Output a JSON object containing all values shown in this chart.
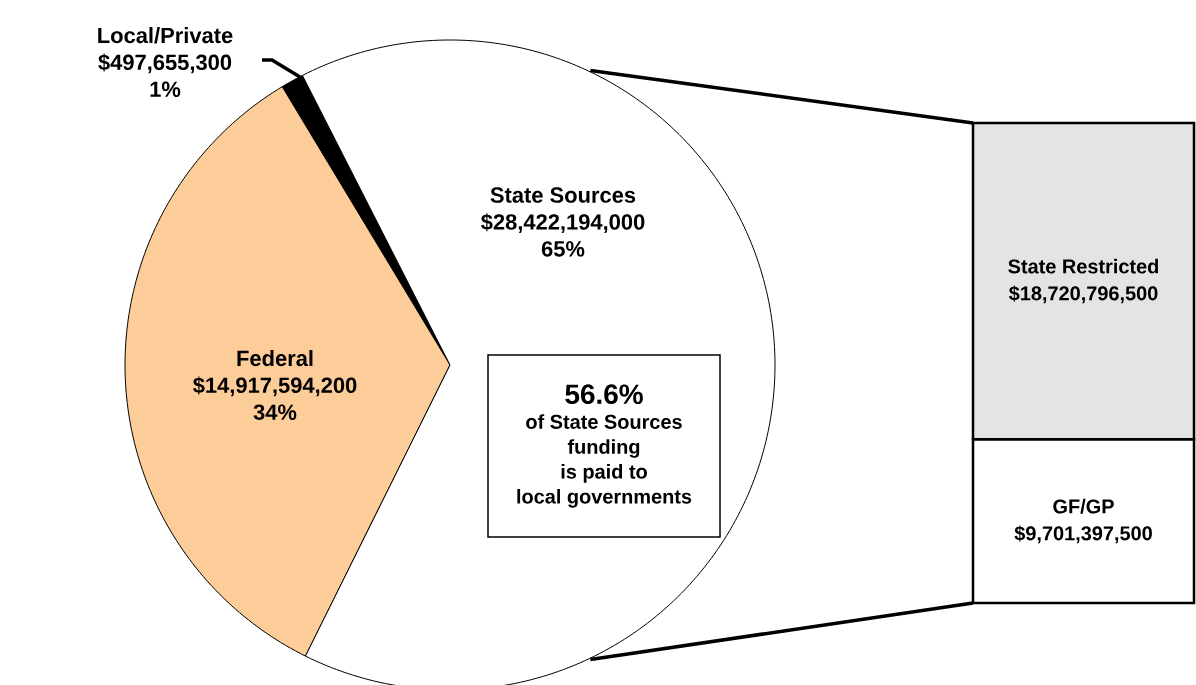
{
  "chart_data": [
    {
      "type": "pie",
      "categories": [
        "Local/Private",
        "Federal",
        "State Sources"
      ],
      "values": [
        497655300,
        14917594200,
        28422194000
      ],
      "colors": [
        "#000000",
        "#fccc99",
        "#ffffff"
      ],
      "value_labels": [
        "$497,655,300",
        "$14,917,594,200",
        "$28,422,194,000"
      ],
      "annotations": [
        "1%",
        "34%",
        "65%",
        "56.6%",
        "of State Sources",
        "funding",
        "is paid to",
        "local governments"
      ]
    },
    {
      "type": "bar",
      "stacked": true,
      "categories": [
        null
      ],
      "series": [
        {
          "name": "GF/GP",
          "color": "#ffffff",
          "values": [
            9701397500
          ],
          "value_labels": [
            "$9,701,397,500"
          ]
        },
        {
          "name": "State Restricted",
          "color": "#e4e4e4",
          "values": [
            18720796500
          ],
          "value_labels": [
            "$18,720,796,500"
          ]
        }
      ]
    }
  ]
}
